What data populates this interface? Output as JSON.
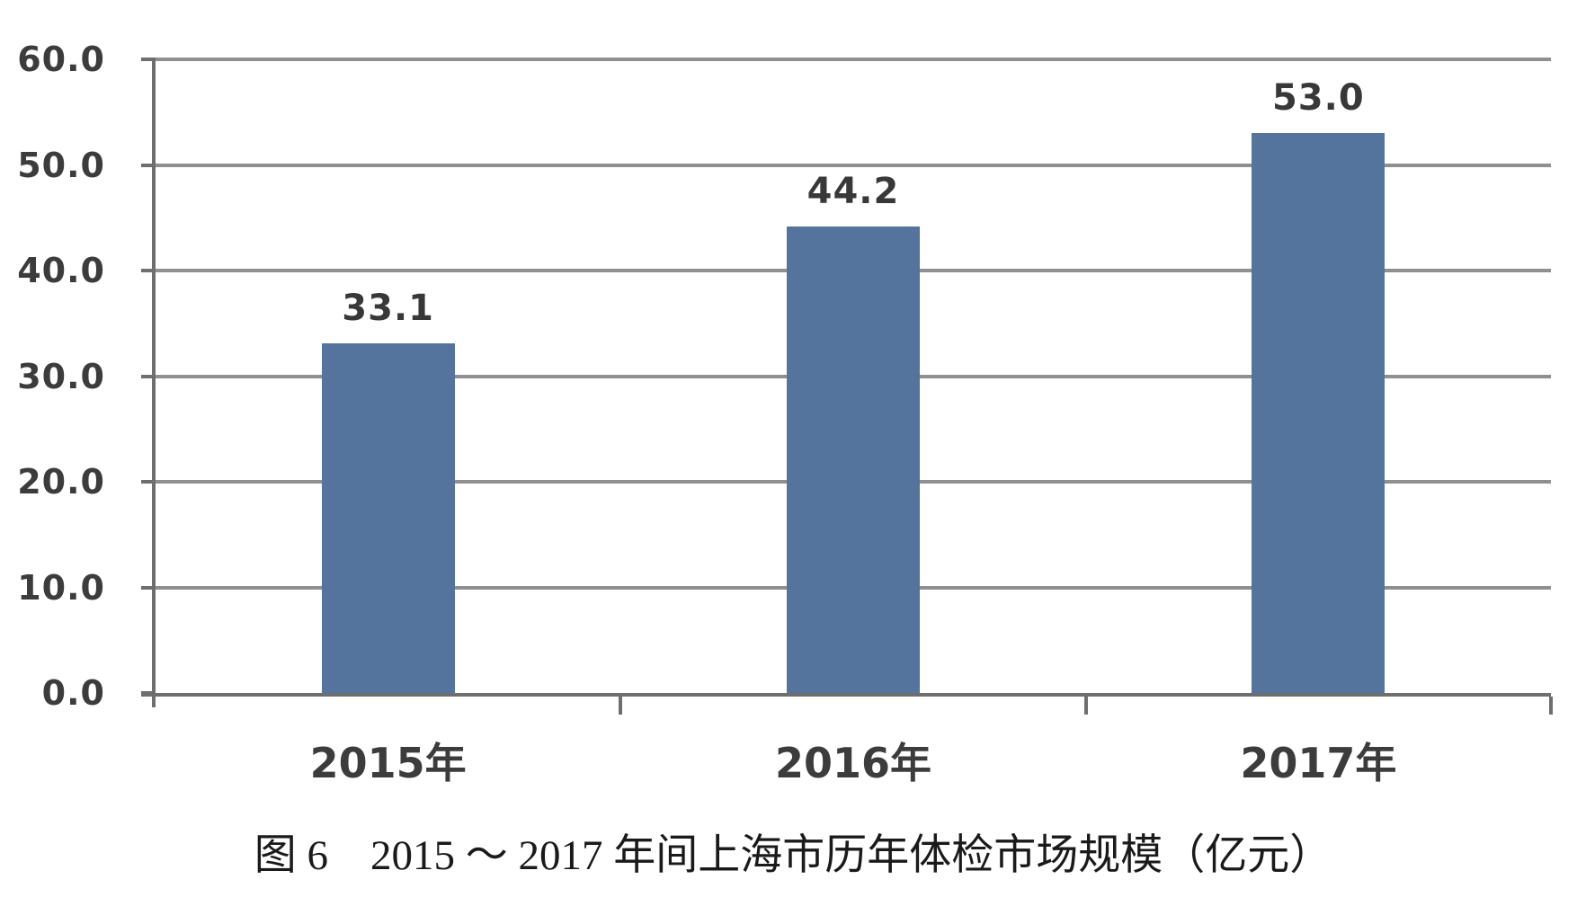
{
  "figure": {
    "caption": "图 6　2015 ～ 2017 年间上海市历年体检市场规模（亿元）"
  },
  "chart_data": {
    "type": "bar",
    "title": "图 6 2015～2017 年间上海市历年体检市场规模（亿元）",
    "unit": "亿元",
    "categories": [
      "2015年",
      "2016年",
      "2017年"
    ],
    "values": [
      33.1,
      44.2,
      53.0
    ],
    "value_labels": [
      "33.1",
      "44.2",
      "53.0"
    ],
    "xlabel": "",
    "ylabel": "",
    "ylim": [
      0,
      60
    ],
    "ytick_interval": 10,
    "ytick_labels": [
      "0.0",
      "10.0",
      "20.0",
      "30.0",
      "40.0",
      "50.0",
      "60.0"
    ],
    "grid": true,
    "legend": "none",
    "colors": {
      "bar": "#54749e",
      "gridline": "#8f8f8f",
      "axis": "#6e6e6e",
      "tick_label": "#3c3c3c",
      "data_label": "#383838"
    }
  }
}
